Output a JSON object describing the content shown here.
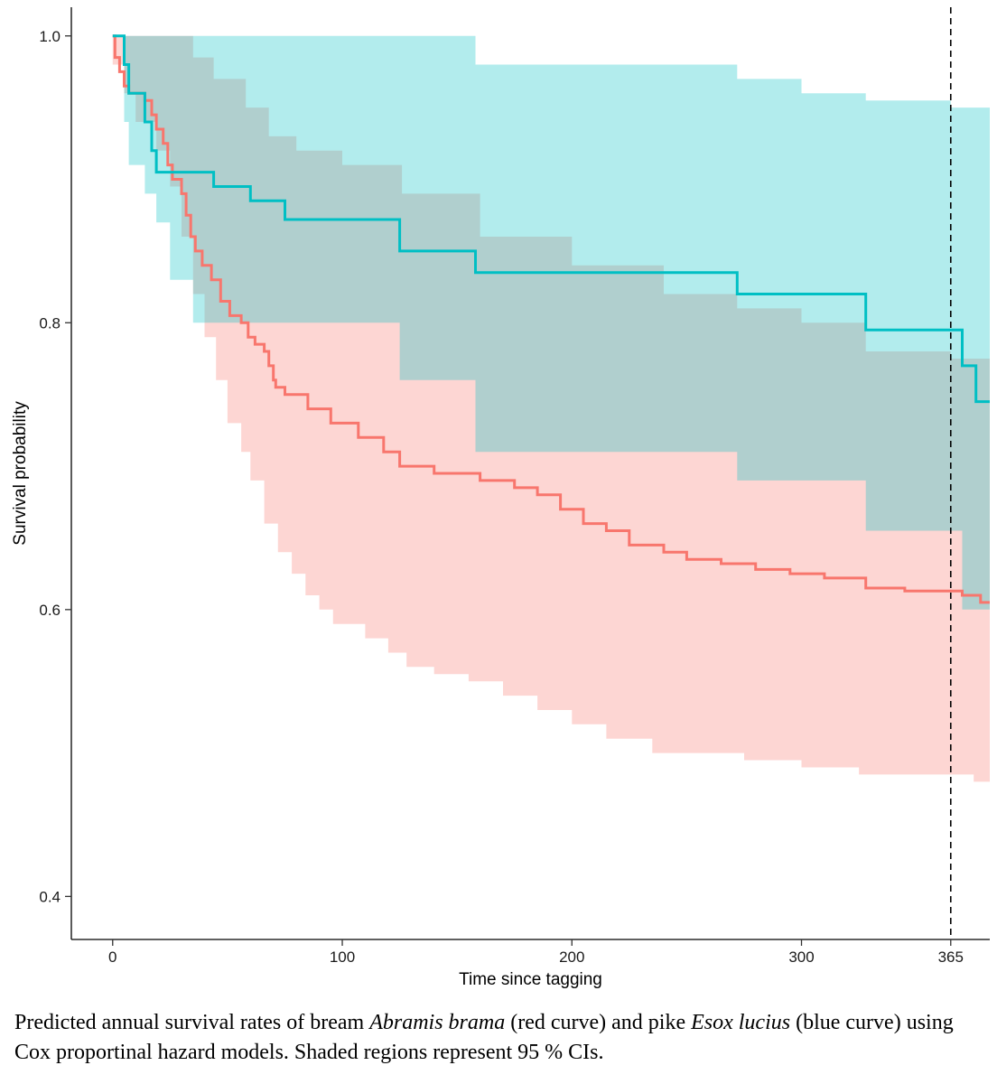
{
  "chart_data": {
    "type": "area",
    "xlabel": "Time since tagging",
    "ylabel": "Survival probability",
    "x_ticks": [
      0,
      100,
      200,
      300,
      365
    ],
    "y_ticks": [
      "0.4",
      "0.6",
      "0.8",
      "1.0"
    ],
    "xlim": [
      -18,
      382
    ],
    "ylim": [
      0.37,
      1.02
    ],
    "reference_line": {
      "x": 365,
      "style": "dashed"
    },
    "series": [
      {
        "color": "#F8766D",
        "fill": "#F8766D",
        "estimate": [
          [
            0,
            1.0
          ],
          [
            1,
            0.985
          ],
          [
            3,
            0.975
          ],
          [
            5,
            0.965
          ],
          [
            7,
            0.96
          ],
          [
            14,
            0.955
          ],
          [
            17,
            0.945
          ],
          [
            19,
            0.935
          ],
          [
            22,
            0.925
          ],
          [
            24,
            0.91
          ],
          [
            26,
            0.9
          ],
          [
            30,
            0.89
          ],
          [
            32,
            0.875
          ],
          [
            34,
            0.86
          ],
          [
            36,
            0.85
          ],
          [
            39,
            0.84
          ],
          [
            43,
            0.83
          ],
          [
            47,
            0.815
          ],
          [
            51,
            0.805
          ],
          [
            56,
            0.8
          ],
          [
            59,
            0.79
          ],
          [
            62,
            0.785
          ],
          [
            66,
            0.78
          ],
          [
            68,
            0.77
          ],
          [
            70,
            0.76
          ],
          [
            71,
            0.755
          ],
          [
            75,
            0.75
          ],
          [
            85,
            0.74
          ],
          [
            95,
            0.73
          ],
          [
            107,
            0.72
          ],
          [
            118,
            0.71
          ],
          [
            125,
            0.7
          ],
          [
            140,
            0.695
          ],
          [
            160,
            0.69
          ],
          [
            175,
            0.685
          ],
          [
            185,
            0.68
          ],
          [
            195,
            0.67
          ],
          [
            205,
            0.66
          ],
          [
            215,
            0.655
          ],
          [
            225,
            0.645
          ],
          [
            240,
            0.64
          ],
          [
            250,
            0.635
          ],
          [
            265,
            0.632
          ],
          [
            280,
            0.628
          ],
          [
            295,
            0.625
          ],
          [
            310,
            0.622
          ],
          [
            328,
            0.615
          ],
          [
            345,
            0.613
          ],
          [
            370,
            0.61
          ],
          [
            378,
            0.605
          ]
        ],
        "ci_upper": [
          [
            0,
            1.0
          ],
          [
            35,
            0.985
          ],
          [
            44,
            0.97
          ],
          [
            58,
            0.95
          ],
          [
            68,
            0.93
          ],
          [
            80,
            0.92
          ],
          [
            100,
            0.91
          ],
          [
            126,
            0.89
          ],
          [
            160,
            0.86
          ],
          [
            200,
            0.84
          ],
          [
            240,
            0.82
          ],
          [
            272,
            0.81
          ],
          [
            300,
            0.8
          ],
          [
            328,
            0.78
          ],
          [
            365,
            0.775
          ],
          [
            382,
            0.775
          ]
        ],
        "ci_lower": [
          [
            0,
            0.98
          ],
          [
            5,
            0.96
          ],
          [
            10,
            0.94
          ],
          [
            19,
            0.92
          ],
          [
            25,
            0.895
          ],
          [
            30,
            0.86
          ],
          [
            35,
            0.82
          ],
          [
            40,
            0.79
          ],
          [
            45,
            0.76
          ],
          [
            50,
            0.73
          ],
          [
            56,
            0.71
          ],
          [
            60,
            0.69
          ],
          [
            66,
            0.66
          ],
          [
            72,
            0.64
          ],
          [
            78,
            0.625
          ],
          [
            84,
            0.61
          ],
          [
            90,
            0.6
          ],
          [
            96,
            0.59
          ],
          [
            110,
            0.58
          ],
          [
            120,
            0.57
          ],
          [
            128,
            0.56
          ],
          [
            140,
            0.555
          ],
          [
            155,
            0.55
          ],
          [
            170,
            0.54
          ],
          [
            185,
            0.53
          ],
          [
            200,
            0.52
          ],
          [
            215,
            0.51
          ],
          [
            235,
            0.5
          ],
          [
            275,
            0.495
          ],
          [
            300,
            0.49
          ],
          [
            325,
            0.485
          ],
          [
            375,
            0.48
          ],
          [
            382,
            0.478
          ]
        ]
      },
      {
        "color": "#00BFC4",
        "fill": "#00BFC4",
        "estimate": [
          [
            0,
            1.0
          ],
          [
            5,
            0.98
          ],
          [
            7,
            0.96
          ],
          [
            14,
            0.94
          ],
          [
            17,
            0.92
          ],
          [
            19,
            0.905
          ],
          [
            44,
            0.895
          ],
          [
            60,
            0.885
          ],
          [
            75,
            0.872
          ],
          [
            125,
            0.85
          ],
          [
            158,
            0.835
          ],
          [
            190,
            0.835
          ],
          [
            272,
            0.82
          ],
          [
            328,
            0.795
          ],
          [
            370,
            0.77
          ],
          [
            376,
            0.745
          ],
          [
            382,
            0.745
          ]
        ],
        "ci_upper": [
          [
            0,
            1.0
          ],
          [
            125,
            1.0
          ],
          [
            158,
            0.98
          ],
          [
            190,
            0.98
          ],
          [
            272,
            0.97
          ],
          [
            300,
            0.96
          ],
          [
            328,
            0.955
          ],
          [
            365,
            0.95
          ],
          [
            382,
            0.945
          ]
        ],
        "ci_lower": [
          [
            0,
            1.0
          ],
          [
            5,
            0.94
          ],
          [
            7,
            0.91
          ],
          [
            14,
            0.89
          ],
          [
            19,
            0.87
          ],
          [
            25,
            0.83
          ],
          [
            35,
            0.8
          ],
          [
            75,
            0.8
          ],
          [
            125,
            0.76
          ],
          [
            158,
            0.71
          ],
          [
            272,
            0.69
          ],
          [
            328,
            0.655
          ],
          [
            370,
            0.6
          ],
          [
            382,
            0.59
          ]
        ]
      }
    ]
  },
  "caption": {
    "part1": "Predicted annual survival rates of bream ",
    "species1": "Abramis brama",
    "part2": " (red curve) and pike ",
    "species2": "Esox lucius",
    "part3": " (blue curve) using Cox proportinal hazard models. Shaded regions represent 95 % CIs."
  }
}
